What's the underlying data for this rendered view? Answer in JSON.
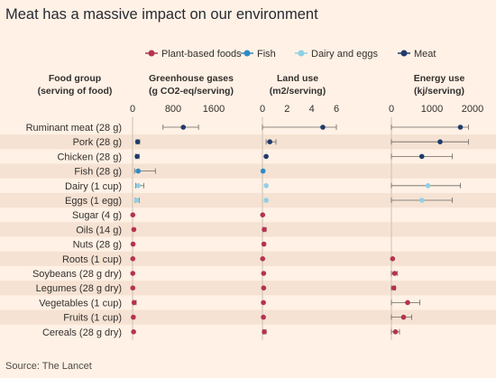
{
  "title": "Meat has a massive impact on our environment",
  "source": "Source: The Lancet",
  "colors": {
    "plant": "#b5334f",
    "fish": "#2b8cc4",
    "dairy": "#8fd0e6",
    "meat": "#1f3b6b",
    "band": "#f5e2d3",
    "whisker": "#6b6561",
    "axis": "#cfc0b3",
    "text": "#33302e"
  },
  "legend": [
    {
      "key": "plant",
      "label": "Plant-based foods"
    },
    {
      "key": "fish",
      "label": "Fish"
    },
    {
      "key": "dairy",
      "label": "Dairy and eggs"
    },
    {
      "key": "meat",
      "label": "Meat"
    }
  ],
  "row_header": {
    "line1": "Food group",
    "line2": "(serving of food)"
  },
  "chart_data": {
    "type": "scatter",
    "title": "Meat has a massive impact on our environment",
    "categories": [
      "Ruminant meat (28 g)",
      "Pork (28 g)",
      "Chicken (28 g)",
      "Fish (28 g)",
      "Dairy (1 cup)",
      "Eggs (1 egg)",
      "Sugar (4 g)",
      "Oils (14 g)",
      "Nuts (28 g)",
      "Roots (1 cup)",
      "Soybeans (28 g dry)",
      "Legumes (28 g dry)",
      "Vegetables (1 cup)",
      "Fruits (1 cup)",
      "Cereals (28 g dry)"
    ],
    "groups": [
      "meat",
      "meat",
      "meat",
      "fish",
      "dairy",
      "dairy",
      "plant",
      "plant",
      "plant",
      "plant",
      "plant",
      "plant",
      "plant",
      "plant",
      "plant"
    ],
    "panels": [
      {
        "title_line1": "Greenhouse gases",
        "title_line2": "(g CO2-eq/serving)",
        "xlim": [
          0,
          1600
        ],
        "ticks": [
          0,
          800,
          1600
        ],
        "values": [
          1000,
          100,
          90,
          110,
          110,
          80,
          5,
          25,
          10,
          5,
          5,
          5,
          30,
          15,
          20
        ],
        "low": [
          600,
          70,
          60,
          40,
          60,
          50,
          3,
          10,
          5,
          3,
          3,
          3,
          10,
          5,
          10
        ],
        "high": [
          1300,
          140,
          130,
          450,
          220,
          130,
          8,
          60,
          15,
          8,
          10,
          10,
          70,
          40,
          40
        ]
      },
      {
        "title_line1": "Land use",
        "title_line2": "(m2/serving)",
        "xlim": [
          0,
          6
        ],
        "ticks": [
          0,
          2,
          4,
          6
        ],
        "values": [
          4.9,
          0.6,
          0.3,
          0.05,
          0.3,
          0.3,
          0.02,
          0.15,
          0.12,
          0.02,
          0.1,
          0.1,
          0.08,
          0.08,
          0.15
        ],
        "low": [
          0,
          0.3,
          0.2,
          0,
          0.2,
          0.2,
          0,
          0.05,
          0.05,
          0,
          0.05,
          0.05,
          0.02,
          0.02,
          0.05
        ],
        "high": [
          6.0,
          1.1,
          0.4,
          0.1,
          0.4,
          0.4,
          0.05,
          0.3,
          0.2,
          0.05,
          0.15,
          0.15,
          0.15,
          0.15,
          0.3
        ]
      },
      {
        "title_line1": "Energy use",
        "title_line2": "(kj/serving)",
        "xlim": [
          0,
          2000
        ],
        "ticks": [
          0,
          1000,
          2000
        ],
        "values": [
          1700,
          1200,
          750,
          null,
          900,
          750,
          null,
          null,
          null,
          30,
          80,
          60,
          400,
          300,
          100
        ],
        "low": [
          0,
          0,
          0,
          null,
          0,
          0,
          null,
          null,
          null,
          0,
          0,
          0,
          0,
          0,
          0
        ],
        "high": [
          1900,
          1900,
          1500,
          null,
          1700,
          1500,
          null,
          null,
          null,
          60,
          150,
          100,
          700,
          500,
          200
        ]
      }
    ]
  }
}
